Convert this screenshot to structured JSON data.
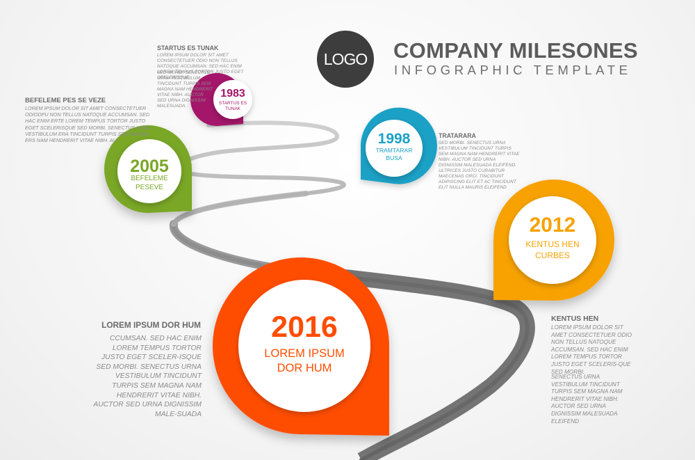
{
  "header": {
    "logo_text": "LOGO",
    "title": "COMPANY MILESONES",
    "subtitle": "INFOGRAPHIC TEMPLATE"
  },
  "colors": {
    "road": "#6e6e6e",
    "m1983": "#a4146a",
    "m1998": "#1aa1c6",
    "m2005": "#7aa726",
    "m2012": "#f7a200",
    "m2016": "#ff4d00"
  },
  "milestones": [
    {
      "year": "1983",
      "label": "STARTUS ES TUNAK",
      "heading": "STARTUS ES TUNAK",
      "text1": "LOREM IPSUM DOLOR SIT AMET CONSECTETUER ODIO NON TELLUS NATOQUE ACCUMSAN. SED HAC ENIM LOREM TEMPUS TORTOR JUSTO EGET SCELERISQUE",
      "text2": "SED MORBI. SENECTUS URNA VESTIBULUM TINCIDUNT TURPIS SEM MAGNA NAM HENDRERIT VITAE NIBH. AUCTOR SED URNA DIGNISSIM MALESUADA."
    },
    {
      "year": "2005",
      "label": "BEFELEME PESEVE",
      "heading": "BEFELEME PES SE VEZE",
      "text1": "LOREM IPSUM DOLOR SIT AMET CONSECTETUER ODIODPU NON TELLUS NATOQUE ACCUMSAN. SED HAC ENIM ERTE LOREM TEMPUS TORTOR JUSTO EGET SCELERISQUE SED MORBI. SENECTUS URNA VESTIBULUM ERA TINCIDUNT TURPIS SEM MAGNA ERS NAM HENDRERIT VITAE NIBH. AU"
    },
    {
      "year": "1998",
      "label": "TRAMTARAR BUSA",
      "heading": "TRATARARA",
      "text1": "SED MORBI. SENECTUS URNA VESTIBULUM TINCIDUNT TURPIS SEM MAGNA NAM HENDRERIT VITAE NIBH. AUCTOR SED URNA DIGNISSIM MALESUADA ELEIFEND. ULTRICES JUSTO CURABITUR MAECENAS ORCI. TINCIDUNT ADIPISCING ELIT ET AC TINCIDUNT ELIT NULLA MAURIS ELEIFEND"
    },
    {
      "year": "2012",
      "label": "KENTUS HEN CURBES",
      "heading": "KENTUS HEN",
      "text1": "LOREM IPSUM DOLOR SIT AMET CONSECTETUER ODIO NON TELLUS NATOQUE ACCUMSAN. SED HAC ENIM LOREM TEMPUS TORTOR JUSTO EGET SCELERIS-QUE SED MORBI.",
      "text2": "SENECTUS URNA VESTIBULUM TINCIDUNT TURPIS SEM MAGNA NAM HENDRERIT VITAE NIBH. AUCTOR SED URNA DIGNISSIM MALESUADA ELEIFEND"
    },
    {
      "year": "2016",
      "label": "LOREM IPSUM DOR HUM",
      "heading": "LOREM IPSUM DOR HUM",
      "text1": "CCUMSAN. SED HAC ENIM LOREM TEMPUS TORTOR JUSTO EGET SCELER-ISQUE SED MORBI. SENECTUS URNA VESTIBULUM TINCIDUNT TURPIS SEM MAGNA NAM HENDRERIT VITAE NIBH. AUCTOR SED URNA DIGNISSIM MALE-SUADA"
    }
  ]
}
